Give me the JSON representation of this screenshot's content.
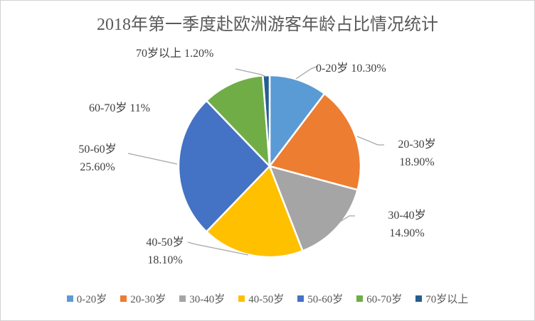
{
  "title": "2018年第一季度赴欧洲游客年龄占比情况统计",
  "chart_data": {
    "type": "pie",
    "title": "2018年第一季度赴欧洲游客年龄占比情况统计",
    "categories": [
      "0-20岁",
      "20-30岁",
      "30-40岁",
      "40-50岁",
      "50-60岁",
      "60-70岁",
      "70岁以上"
    ],
    "values": [
      10.3,
      18.9,
      14.9,
      18.1,
      25.6,
      11,
      1.2
    ],
    "unit": "%",
    "colors": [
      "#5B9BD5",
      "#ED7D31",
      "#A5A5A5",
      "#FFC000",
      "#4472C4",
      "#70AD47",
      "#255E91"
    ],
    "displayed_labels": [
      "0-20岁 10.30%",
      "20-30岁 18.90%",
      "30-40岁 14.90%",
      "40-50岁 18.10%",
      "50-60岁 25.60%",
      "60-70岁 11%",
      "70岁以上 1.20%"
    ],
    "start_angle_deg": 0,
    "direction": "clockwise",
    "legend_position": "bottom"
  },
  "labels": {
    "age_0_20": "0-20岁 10.30%",
    "age_20_30_line1": "20-30岁",
    "age_20_30_line2": "18.90%",
    "age_30_40_line1": "30-40岁",
    "age_30_40_line2": "14.90%",
    "age_40_50_line1": "40-50岁",
    "age_40_50_line2": "18.10%",
    "age_50_60_line1": "50-60岁",
    "age_50_60_line2": "25.60%",
    "age_60_70": "60-70岁 11%",
    "age_70_plus": "70岁以上 1.20%"
  },
  "legend": {
    "items": [
      {
        "label": "0-20岁",
        "color": "#5B9BD5"
      },
      {
        "label": "20-30岁",
        "color": "#ED7D31"
      },
      {
        "label": "30-40岁",
        "color": "#A5A5A5"
      },
      {
        "label": "40-50岁",
        "color": "#FFC000"
      },
      {
        "label": "50-60岁",
        "color": "#4472C4"
      },
      {
        "label": "60-70岁",
        "color": "#70AD47"
      },
      {
        "label": "70岁以上",
        "color": "#255E91"
      }
    ]
  }
}
